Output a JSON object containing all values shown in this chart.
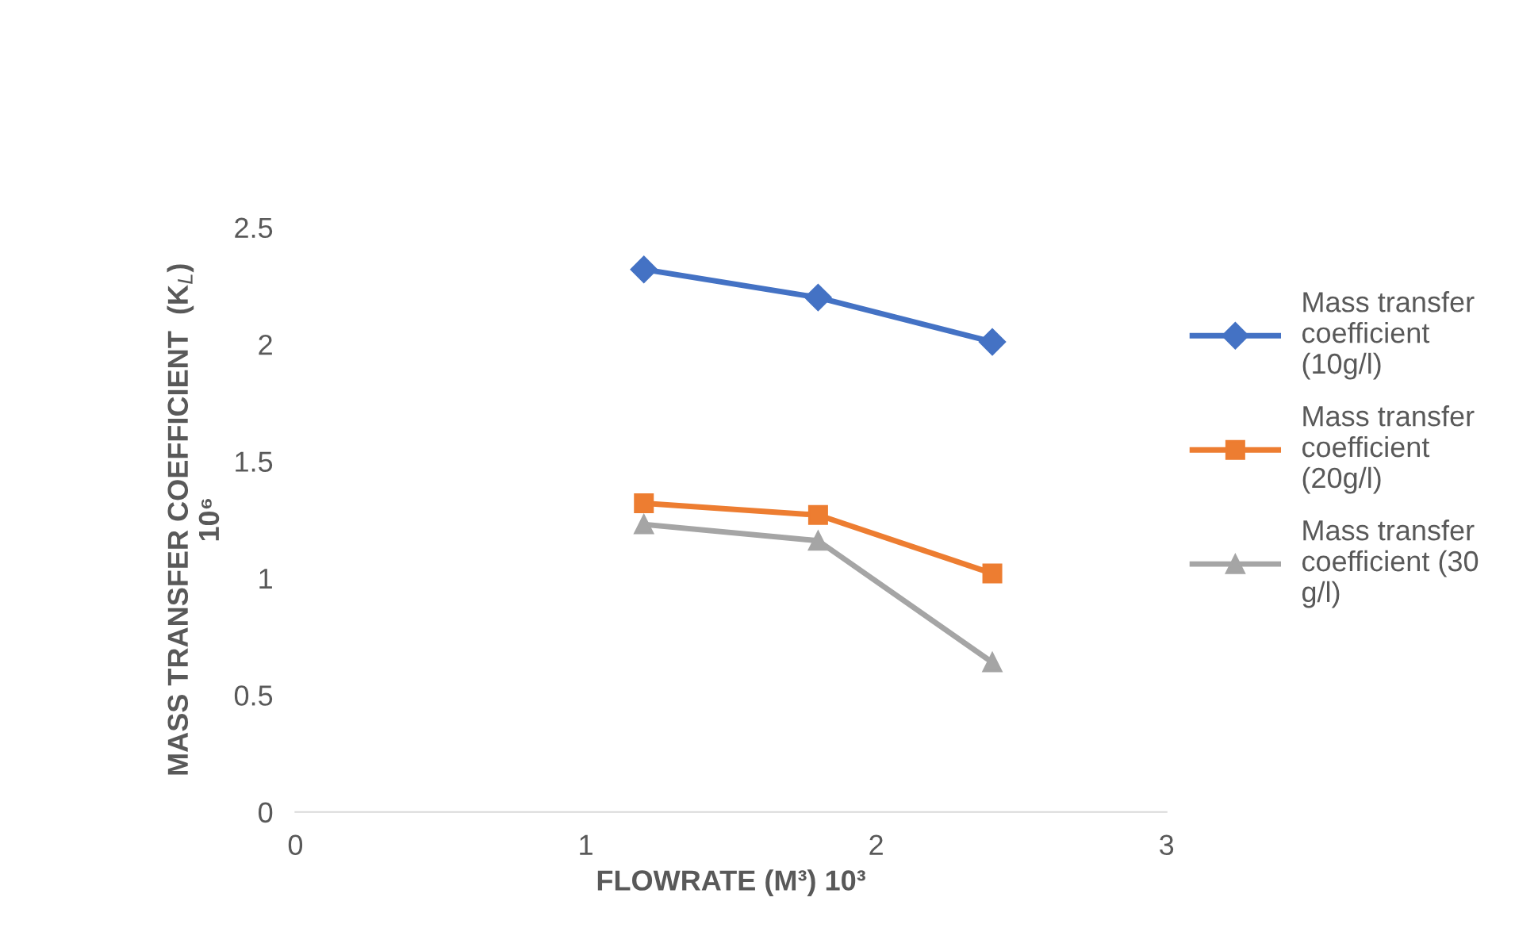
{
  "chart_data": {
    "type": "line",
    "xlabel": "FLOWRATE (M³) 10³",
    "ylabel": "MASS TRANSFER COEFFICIENT  (K$_{L}$)\n10⁶",
    "x": [
      1.2,
      1.8,
      2.4
    ],
    "series": [
      {
        "name": "Mass transfer\ncoefficient\n(10g/l)",
        "color": "#4472c4",
        "marker": "diamond",
        "values": [
          2.32,
          2.2,
          2.01
        ]
      },
      {
        "name": "Mass transfer\ncoefficient\n(20g/l)",
        "color": "#ed7d31",
        "marker": "square",
        "values": [
          1.32,
          1.27,
          1.02
        ]
      },
      {
        "name": "Mass transfer\ncoefficient (30\ng/l)",
        "color": "#a5a5a5",
        "marker": "triangle",
        "values": [
          1.23,
          1.16,
          0.64
        ]
      }
    ],
    "xlim": [
      0,
      3
    ],
    "xticks": [
      0,
      1,
      2,
      3
    ],
    "ylim": [
      0,
      2.5
    ],
    "yticks": [
      0,
      0.5,
      1,
      1.5,
      2,
      2.5
    ],
    "grid": false,
    "legend": "right",
    "line_style": "solid"
  }
}
